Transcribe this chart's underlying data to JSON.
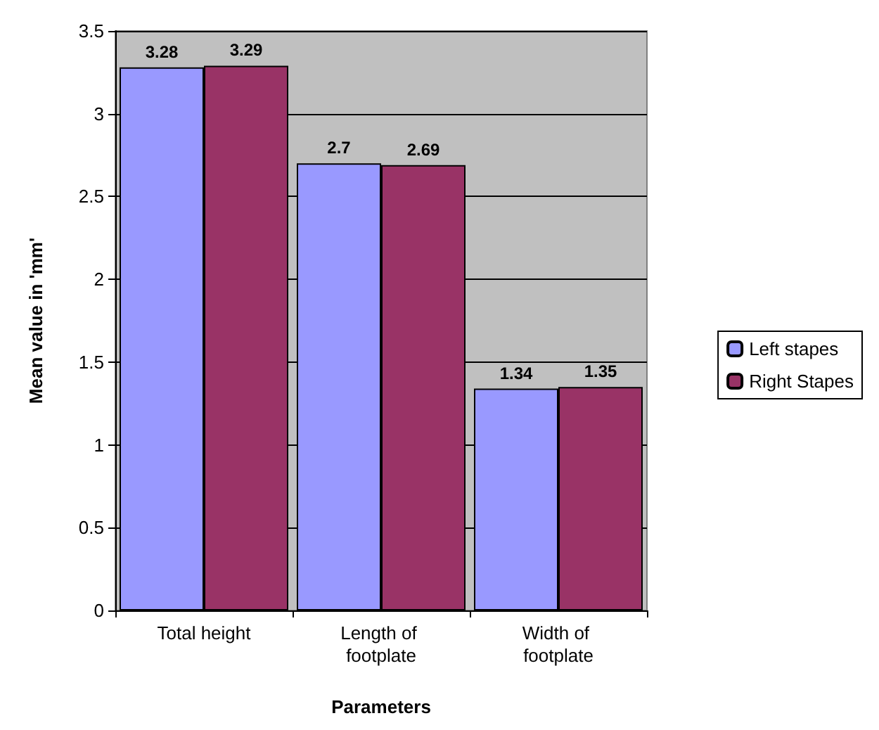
{
  "chart_data": {
    "type": "bar",
    "xlabel": "Parameters",
    "ylabel": "Mean value in 'mm'",
    "categories": [
      "Total height",
      "Length of footplate",
      "Width of footplate"
    ],
    "series": [
      {
        "name": "Left stapes",
        "color": "#9999ff",
        "values": [
          3.28,
          2.7,
          1.34
        ]
      },
      {
        "name": "Right Stapes",
        "color": "#993366",
        "values": [
          3.29,
          2.69,
          1.35
        ]
      }
    ],
    "ylim": [
      0,
      3.5
    ],
    "yticks": [
      0,
      0.5,
      1,
      1.5,
      2,
      2.5,
      3,
      3.5
    ],
    "grid": "y",
    "legend": "right",
    "data_labels": true
  }
}
